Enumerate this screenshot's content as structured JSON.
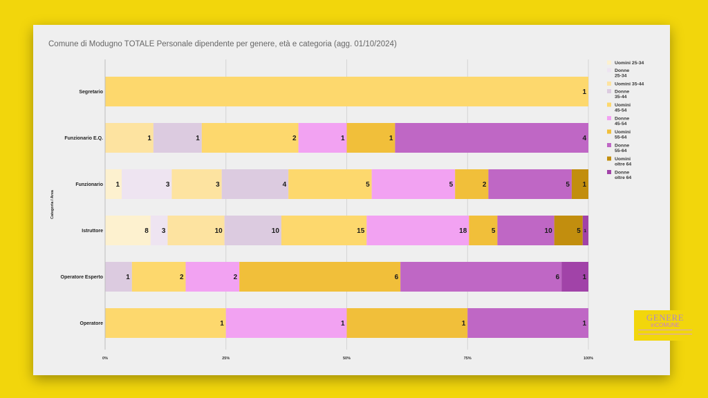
{
  "title": "Comune di Modugno TOTALE Personale dipendente per genere, età e categoria (agg. 01/10/2024)",
  "logo": {
    "line1": "GENERE",
    "line2": "inCOMUNE"
  },
  "chart_data": {
    "type": "bar",
    "orientation": "horizontal",
    "stacked": "percent",
    "title": "Comune di Modugno TOTALE Personale dipendente per genere, età e categoria (agg. 01/10/2024)",
    "xlabel": "",
    "ylabel": "Categoria / Area",
    "x_ticks": [
      "0%",
      "25%",
      "50%",
      "75%",
      "100%"
    ],
    "xlim": [
      0,
      100
    ],
    "grid": true,
    "legend_position": "right",
    "categories": [
      "Segretario",
      "Funzionario E.Q.",
      "Funzionario",
      "Istruttore",
      "Operatore Esperto",
      "Operatore"
    ],
    "series": [
      {
        "name": "Uomini 25-34",
        "color": "#fdf1cf",
        "values": [
          0,
          0,
          1,
          8,
          0,
          0
        ]
      },
      {
        "name": "Donne 25-34",
        "color": "#eee4f1",
        "values": [
          0,
          0,
          3,
          3,
          0,
          0
        ]
      },
      {
        "name": "Uomini 35-44",
        "color": "#fde3a0",
        "values": [
          0,
          1,
          3,
          10,
          0,
          0
        ]
      },
      {
        "name": "Donne 35-44",
        "color": "#dccbe0",
        "values": [
          0,
          1,
          4,
          10,
          1,
          0
        ]
      },
      {
        "name": "Uomini 45-54",
        "color": "#fdd86d",
        "values": [
          1,
          2,
          5,
          15,
          2,
          1
        ]
      },
      {
        "name": "Donne 45-54",
        "color": "#f2a2f2",
        "values": [
          0,
          1,
          5,
          18,
          2,
          1
        ]
      },
      {
        "name": "Uomini 55-64",
        "color": "#f1bf3a",
        "values": [
          0,
          1,
          2,
          5,
          6,
          1
        ]
      },
      {
        "name": "Donne 55-64",
        "color": "#bf67c5",
        "values": [
          0,
          4,
          5,
          10,
          6,
          1
        ]
      },
      {
        "name": "Uomini oltre 64",
        "color": "#c28e0e",
        "values": [
          0,
          0,
          1,
          5,
          0,
          0
        ]
      },
      {
        "name": "Donne oltre 64",
        "color": "#a143a8",
        "values": [
          0,
          0,
          0,
          1,
          1,
          0
        ]
      }
    ],
    "legend": [
      {
        "label": "Uomini 25-34",
        "color": "#fdf1cf"
      },
      {
        "label": "Donne\n25-34",
        "color": "#eee4f1"
      },
      {
        "label": "Uomini 35-44",
        "color": "#fde3a0"
      },
      {
        "label": "Donne\n35-44",
        "color": "#dccbe0"
      },
      {
        "label": "Uomini\n45-54",
        "color": "#fdd86d"
      },
      {
        "label": "Donne\n45-54",
        "color": "#f2a2f2"
      },
      {
        "label": "Uomini\n55-64",
        "color": "#f1bf3a"
      },
      {
        "label": "Donne\n55-64",
        "color": "#bf67c5"
      },
      {
        "label": "Uomini\noltre 64",
        "color": "#c28e0e"
      },
      {
        "label": "Donne\noltre 64",
        "color": "#a143a8"
      }
    ]
  }
}
